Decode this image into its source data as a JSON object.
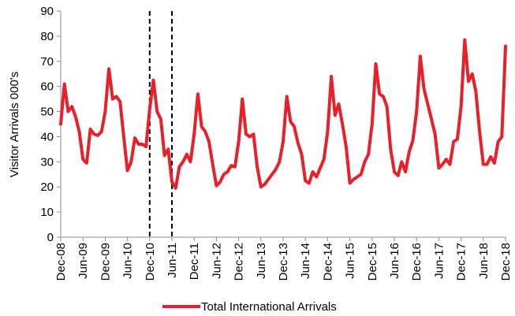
{
  "chart_data": {
    "type": "line",
    "ylabel": "Visitor Arrivals 000's",
    "xlabel": "",
    "ylim": [
      0,
      90
    ],
    "yticks": [
      0,
      10,
      20,
      30,
      40,
      50,
      60,
      70,
      80,
      90
    ],
    "x_tick_labels": [
      "Dec-08",
      "Jun-09",
      "Dec-09",
      "Jun-10",
      "Dec-10",
      "Jun-11",
      "Dec-11",
      "Jun-12",
      "Dec-12",
      "Jun-13",
      "Dec-13",
      "Jun-14",
      "Dec-14",
      "Jun-15",
      "Dec-15",
      "Jun-16",
      "Dec-16",
      "Jun-17",
      "Dec-17",
      "Jun-18",
      "Dec-18"
    ],
    "x_start": "Dec-08",
    "x_end": "Dec-18",
    "legend_position": "bottom",
    "grid": false,
    "vertical_markers": [
      "Dec-10",
      "Jun-11"
    ],
    "series": [
      {
        "name": "Total International Arrivals",
        "color": "#e8202a",
        "values": [
          45,
          61,
          50,
          52,
          48,
          42,
          31,
          29.5,
          43,
          41,
          40.5,
          42,
          50,
          67,
          55,
          56,
          54,
          40,
          26.5,
          30,
          39.5,
          37,
          37,
          36,
          51,
          62.5,
          50,
          47,
          32.5,
          35,
          22,
          19.5,
          28,
          30,
          33,
          30,
          41,
          57,
          44,
          42,
          38,
          29,
          20.5,
          22,
          25,
          26,
          28.5,
          28,
          38,
          55,
          41,
          40,
          41,
          28,
          20,
          21,
          23,
          25,
          27,
          30,
          38,
          56,
          46,
          44,
          37.5,
          33,
          22.5,
          21.5,
          26,
          24,
          27.5,
          31,
          42,
          64,
          48.5,
          53,
          45,
          36,
          21.5,
          23,
          24,
          25,
          30,
          33,
          45,
          69,
          57,
          56,
          52,
          35,
          26,
          24.5,
          30,
          26,
          34,
          38.5,
          50,
          72,
          59,
          53,
          47,
          41,
          27.5,
          29,
          31,
          29,
          38,
          39,
          52,
          78.5,
          62,
          65,
          58,
          42,
          29,
          29,
          32,
          29.5,
          38,
          40,
          76
        ]
      }
    ]
  }
}
